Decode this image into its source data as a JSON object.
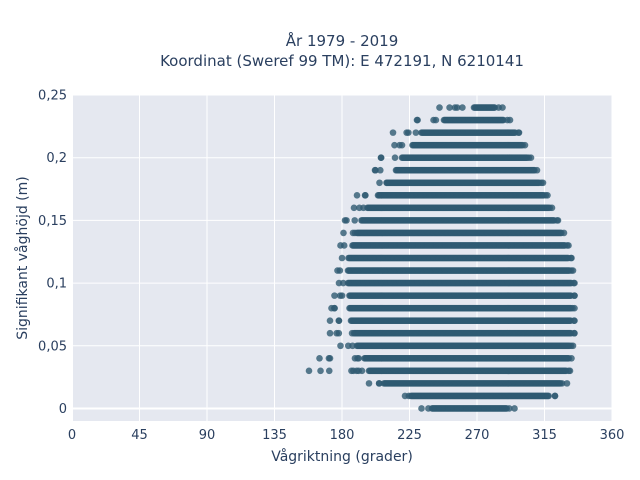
{
  "chart_data": {
    "type": "scatter",
    "title_line1": "År 1979 - 2019",
    "title_line2": "Koordinat (Sweref 99 TM): E 472191, N 6210141",
    "xlabel": "Vågriktning (grader)",
    "ylabel": "Signifikant våghöjd (m)",
    "xlim": [
      0,
      360
    ],
    "ylim": [
      -0.01,
      0.25
    ],
    "x_ticks": [
      0,
      45,
      90,
      135,
      180,
      225,
      270,
      315,
      360
    ],
    "x_tick_labels": [
      "0",
      "45",
      "90",
      "135",
      "180",
      "225",
      "270",
      "315",
      "360"
    ],
    "y_ticks": [
      0,
      0.05,
      0.1,
      0.15,
      0.2,
      0.25
    ],
    "y_tick_labels": [
      "0",
      "0,05",
      "0,1",
      "0,15",
      "0,2",
      "0,25"
    ],
    "grid": true,
    "marker_color": "#2f5a72",
    "plot_background": "#e5e8f0",
    "y_step": 0.01,
    "rows": [
      {
        "y": 0.0,
        "dense": [
          240,
          290
        ],
        "sparse": [
          233,
          295
        ]
      },
      {
        "y": 0.01,
        "dense": [
          226,
          318
        ],
        "sparse": [
          222,
          322
        ]
      },
      {
        "y": 0.02,
        "dense": [
          208,
          326
        ],
        "sparse": [
          198,
          330
        ]
      },
      {
        "y": 0.03,
        "dense": [
          198,
          330
        ],
        "sparse": [
          158,
          332
        ]
      },
      {
        "y": 0.04,
        "dense": [
          195,
          331
        ],
        "sparse": [
          165,
          333
        ]
      },
      {
        "y": 0.05,
        "dense": [
          190,
          332
        ],
        "sparse": [
          179,
          334
        ]
      },
      {
        "y": 0.06,
        "dense": [
          188,
          333
        ],
        "sparse": [
          172,
          335
        ]
      },
      {
        "y": 0.07,
        "dense": [
          186,
          333
        ],
        "sparse": [
          172,
          335
        ]
      },
      {
        "y": 0.08,
        "dense": [
          185,
          333
        ],
        "sparse": [
          173,
          335
        ]
      },
      {
        "y": 0.09,
        "dense": [
          185,
          333
        ],
        "sparse": [
          175,
          335
        ]
      },
      {
        "y": 0.1,
        "dense": [
          184,
          333
        ],
        "sparse": [
          178,
          335
        ]
      },
      {
        "y": 0.11,
        "dense": [
          184,
          332
        ],
        "sparse": [
          177,
          334
        ]
      },
      {
        "y": 0.12,
        "dense": [
          185,
          331
        ],
        "sparse": [
          180,
          333
        ]
      },
      {
        "y": 0.13,
        "dense": [
          187,
          329
        ],
        "sparse": [
          179,
          331
        ]
      },
      {
        "y": 0.14,
        "dense": [
          190,
          326
        ],
        "sparse": [
          181,
          328
        ]
      },
      {
        "y": 0.15,
        "dense": [
          193,
          322
        ],
        "sparse": [
          182,
          324
        ]
      },
      {
        "y": 0.16,
        "dense": [
          197,
          318
        ],
        "sparse": [
          188,
          320
        ]
      },
      {
        "y": 0.17,
        "dense": [
          204,
          315
        ],
        "sparse": [
          190,
          317
        ]
      },
      {
        "y": 0.18,
        "dense": [
          210,
          312
        ],
        "sparse": [
          205,
          314
        ]
      },
      {
        "y": 0.19,
        "dense": [
          216,
          308
        ],
        "sparse": [
          202,
          310
        ]
      },
      {
        "y": 0.2,
        "dense": [
          220,
          304
        ],
        "sparse": [
          206,
          306
        ]
      },
      {
        "y": 0.21,
        "dense": [
          227,
          300
        ],
        "sparse": [
          215,
          302
        ]
      },
      {
        "y": 0.22,
        "dense": [
          233,
          296
        ],
        "sparse": [
          214,
          298
        ]
      },
      {
        "y": 0.23,
        "dense": [
          248,
          288
        ],
        "sparse": [
          230,
          292
        ]
      },
      {
        "y": 0.24,
        "dense": [
          268,
          282
        ],
        "sparse": [
          245,
          287
        ]
      }
    ]
  }
}
